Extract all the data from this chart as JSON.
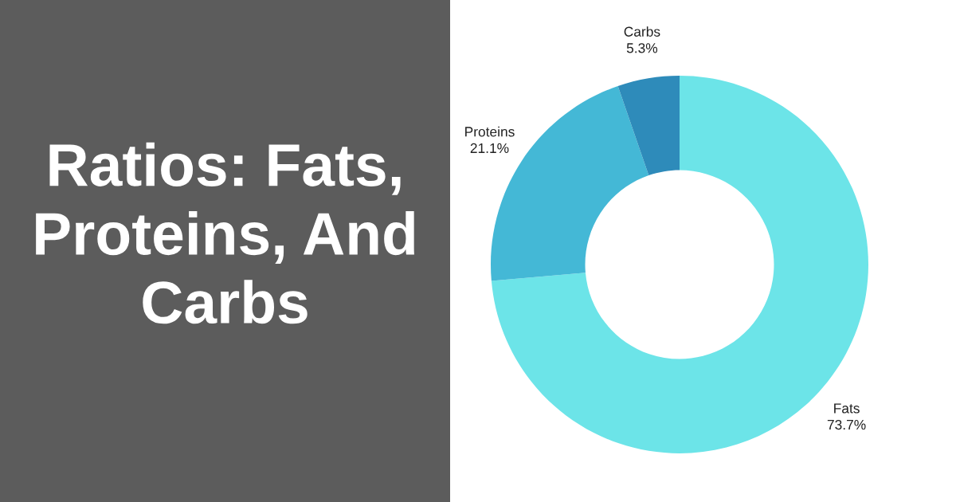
{
  "chart_data": {
    "type": "donut",
    "title": "Ratios: Fats, Proteins, And Carbs",
    "categories": [
      "Fats",
      "Proteins",
      "Carbs"
    ],
    "values": [
      73.7,
      21.1,
      5.3
    ],
    "colors": [
      "#6ce4e8",
      "#44b8d6",
      "#2e8bba"
    ],
    "value_labels": [
      "73.7%",
      "21.1%",
      "5.3%"
    ]
  }
}
